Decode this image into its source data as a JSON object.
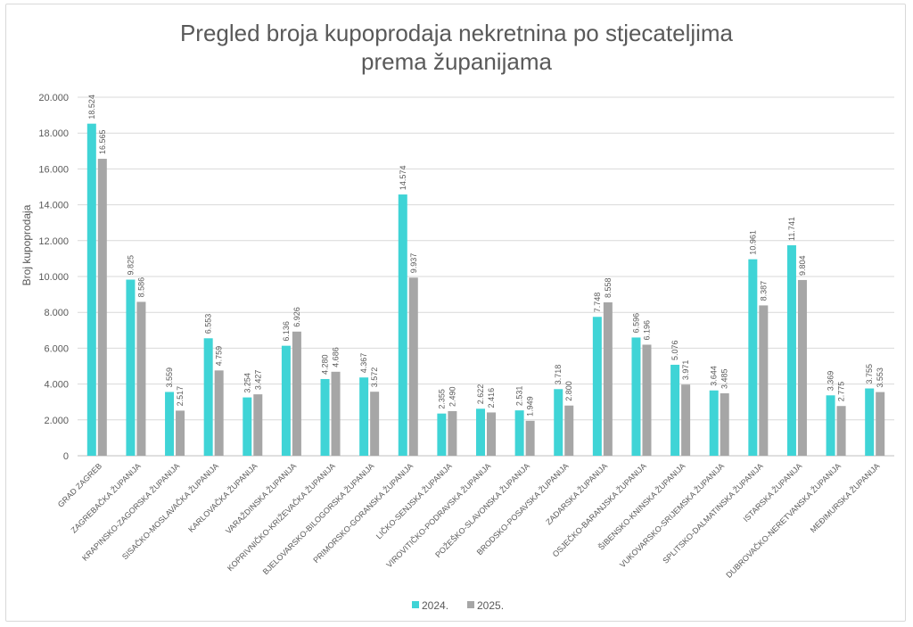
{
  "chart_data": {
    "type": "bar",
    "title_lines": [
      "Pregled broja kupoprodaja nekretnina po stjecateljima",
      "prema županijama"
    ],
    "xlabel": "",
    "ylabel": "Broj kupoprodaja",
    "ylim": [
      0,
      20000
    ],
    "yticks": [
      0,
      2000,
      4000,
      6000,
      8000,
      10000,
      12000,
      14000,
      16000,
      18000,
      20000
    ],
    "ytick_labels": [
      "0",
      "2.000",
      "4.000",
      "6.000",
      "8.000",
      "10.000",
      "12.000",
      "14.000",
      "16.000",
      "18.000",
      "20.000"
    ],
    "grid": true,
    "legend_position": "bottom",
    "categories": [
      "GRAD ZAGREB",
      "ZAGREBAČKA ŽUPANIJA",
      "KRAPINSKO-ZAGORSKA ŽUPANIJA",
      "SISAČKO-MOSLAVAČKA ŽUPANIJA",
      "KARLOVAČKA ŽUPANIJA",
      "VARAŽDINSKA ŽUPANIJA",
      "KOPRIVNIČKO-KRIŽEVAČKA ŽUPANIJA",
      "BJELOVARSKO-BILOGORSKA ŽUPANIJA",
      "PRIMORSKO-GORANSKA ŽUPANIJA",
      "LIČKO-SENJSKA ŽUPANIJA",
      "VIROVITIČKO-PODRAVSKA ŽUPANIJA",
      "POŽEŠKO-SLAVONSKA ŽUPANIJA",
      "BRODSKO-POSAVSKA ŽUPANIJA",
      "ZADARSKA ŽUPANIJA",
      "OSJEČKO-BARANJSKA ŽUPANIJA",
      "ŠIBENSKO-KNINSKA ŽUPANIJA",
      "VUKOVARSKO-SRIJEMSKA ŽUPANIJA",
      "SPLITSKO-DALMATINSKA ŽUPANIJA",
      "ISTARSKA ŽUPANIJA",
      "DUBROVAČKO-NERETVANSKA ŽUPANIJA",
      "MEĐIMURSKA ŽUPANIJA"
    ],
    "series": [
      {
        "name": "2024.",
        "color": "#3fd4d6",
        "values": [
          18524,
          9825,
          3559,
          6553,
          3254,
          6136,
          4280,
          4367,
          14574,
          2355,
          2622,
          2531,
          3718,
          7748,
          6596,
          5076,
          3644,
          10961,
          11741,
          3369,
          3755
        ],
        "labels": [
          "18.524",
          "9.825",
          "3.559",
          "6.553",
          "3.254",
          "6.136",
          "4.280",
          "4.367",
          "14.574",
          "2.355",
          "2.622",
          "2.531",
          "3.718",
          "7.748",
          "6.596",
          "5.076",
          "3.644",
          "10.961",
          "11.741",
          "3.369",
          "3.755"
        ]
      },
      {
        "name": "2025.",
        "color": "#a6a6a6",
        "values": [
          16565,
          8586,
          2517,
          4759,
          3427,
          6926,
          4686,
          3572,
          9937,
          2490,
          2416,
          1949,
          2800,
          8558,
          6196,
          3971,
          3485,
          8387,
          9804,
          2775,
          3553
        ],
        "labels": [
          "16.565",
          "8.586",
          "2.517",
          "4.759",
          "3.427",
          "6.926",
          "4.686",
          "3.572",
          "9.937",
          "2.490",
          "2.416",
          "1.949",
          "2.800",
          "8.558",
          "6.196",
          "3.971",
          "3.485",
          "8.387",
          "9.804",
          "2.775",
          "3.553"
        ]
      }
    ]
  }
}
